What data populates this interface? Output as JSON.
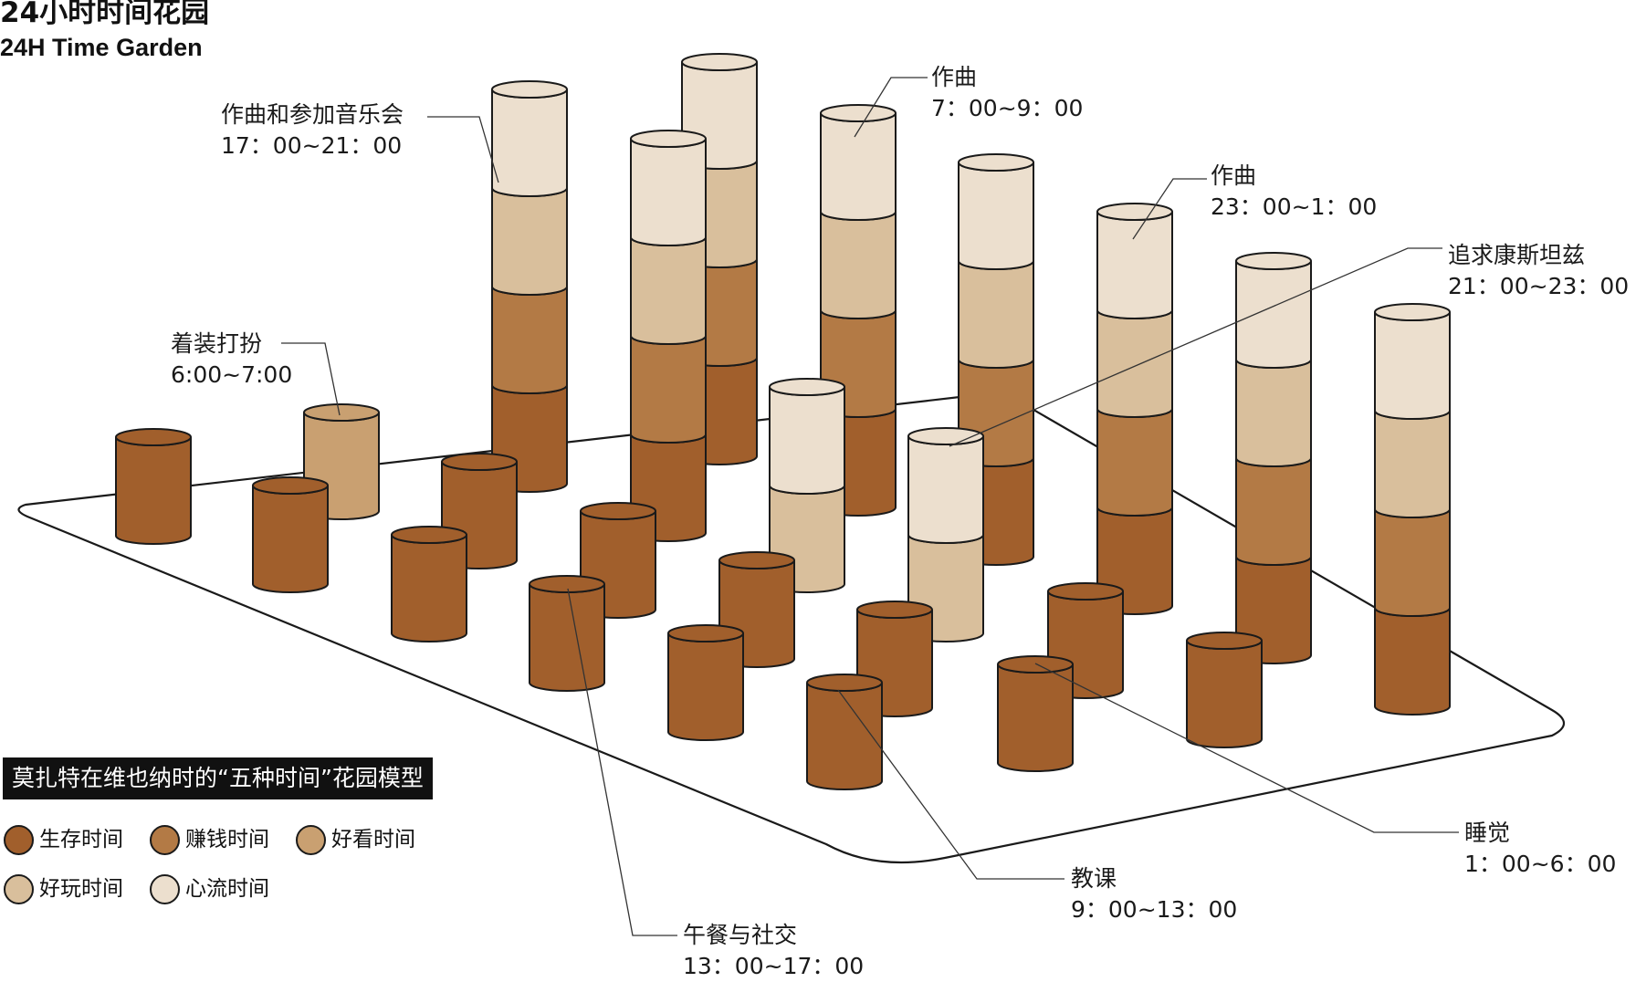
{
  "title": {
    "cn": "24小时时间花园",
    "en": "24H Time Garden"
  },
  "model_label": "莫扎特在维也纳时的“五种时间”花园模型",
  "colors": {
    "survival": "#a15f2c",
    "earning": "#b37a45",
    "looking_good": "#c9a071",
    "fun": "#d9bf9c",
    "flow": "#ecdfce"
  },
  "legend": [
    {
      "label": "生存时间",
      "color": "#a15f2c"
    },
    {
      "label": "赚钱时间",
      "color": "#b37a45"
    },
    {
      "label": "好看时间",
      "color": "#c9a071"
    },
    {
      "label": "好玩时间",
      "color": "#d9bf9c"
    },
    {
      "label": "心流时间",
      "color": "#ecdfce"
    }
  ],
  "callouts": [
    {
      "activity": "作曲和参加音乐会",
      "time": "17：00~21：00"
    },
    {
      "activity": "着装打扮",
      "time": "6:00~7:00"
    },
    {
      "activity": "作曲",
      "time": "7：00~9：00"
    },
    {
      "activity": "作曲",
      "time": "23：00~1：00"
    },
    {
      "activity": "追求康斯坦兹",
      "time": "21：00~23：00"
    },
    {
      "activity": "睡觉",
      "time": "1：00~6：00"
    },
    {
      "activity": "教课",
      "time": "9：00~13：00"
    },
    {
      "activity": "午餐与社交",
      "time": "13：00~17：00"
    }
  ]
}
